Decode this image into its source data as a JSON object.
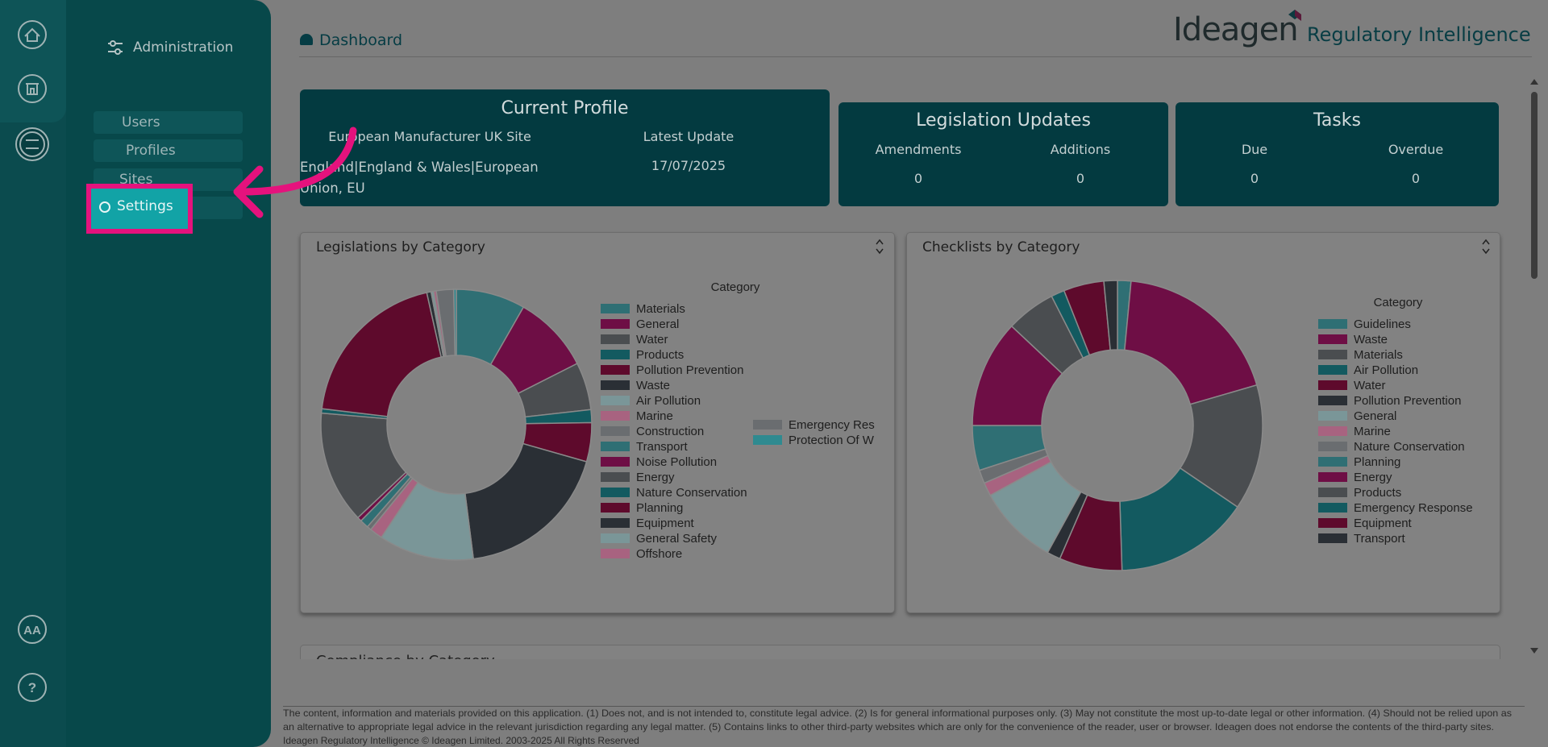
{
  "sidebar": {
    "title": "Administration",
    "menu": [
      "Users",
      "Profiles",
      "Sites",
      "Settings"
    ],
    "user_initials": "AA",
    "help": "?"
  },
  "header": {
    "title": "Dashboard",
    "brand": "Ideagen",
    "product": "Regulatory Intelligence"
  },
  "cards": {
    "current_profile": {
      "title": "Current Profile",
      "name": "European Manufacturer UK Site",
      "jurisdiction": "England|England & Wales|European Union, EU",
      "update_label": "Latest Update",
      "update_value": "17/07/2025"
    },
    "legislation_updates": {
      "title": "Legislation Updates",
      "items": [
        {
          "label": "Amendments",
          "value": 0
        },
        {
          "label": "Additions",
          "value": 0
        }
      ]
    },
    "tasks": {
      "title": "Tasks",
      "items": [
        {
          "label": "Due",
          "value": 0
        },
        {
          "label": "Overdue",
          "value": 0
        }
      ]
    }
  },
  "chart_data": [
    {
      "type": "donut",
      "title": "Legislations by Category",
      "legend_title": "Category",
      "categories": [
        "Materials",
        "General",
        "Water",
        "Products",
        "Pollution Prevention",
        "Waste",
        "Air Pollution",
        "Marine",
        "Construction",
        "Transport",
        "Noise Pollution",
        "Energy",
        "Nature Conservation",
        "Planning",
        "Equipment",
        "General Safety",
        "Offshore",
        "Emergency Res",
        "Protection Of W"
      ],
      "values": [
        8,
        9,
        5.5,
        1.5,
        4.5,
        18,
        11,
        1.5,
        0.5,
        1,
        0.5,
        13,
        0.5,
        19,
        0.5,
        0.3,
        0.3,
        2,
        0.3
      ],
      "colors": [
        "#2f6f74",
        "#6e0e45",
        "#4a4d50",
        "#135a60",
        "#5e0a2c",
        "#2a2f35",
        "#7a9698",
        "#a86380",
        "#6a6d70",
        "#2f6f74",
        "#6e0e45",
        "#4a4d50",
        "#135a60",
        "#5e0a2c",
        "#2a2f35",
        "#7a9698",
        "#a86380",
        "#6a6d70",
        "#2f8a90"
      ]
    },
    {
      "type": "donut",
      "title": "Checklists by Category",
      "legend_title": "Category",
      "categories": [
        "Guidelines",
        "Waste",
        "Materials",
        "Air Pollution",
        "Water",
        "Pollution Prevention",
        "General",
        "Marine",
        "Nature Conservation",
        "Planning",
        "Energy",
        "Products",
        "Emergency Response",
        "Equipment",
        "Transport"
      ],
      "values": [
        1.5,
        19,
        14,
        15,
        7,
        1.5,
        9,
        1.5,
        1.5,
        5,
        12,
        5.5,
        1.5,
        4.5,
        1.5
      ],
      "colors": [
        "#2f6f74",
        "#6e0e45",
        "#4a4d50",
        "#135a60",
        "#5e0a2c",
        "#2a2f35",
        "#7a9698",
        "#a86380",
        "#6a6d70",
        "#2f6f74",
        "#6e0e45",
        "#4a4d50",
        "#135a60",
        "#5e0a2c",
        "#2a2f35"
      ]
    }
  ],
  "compliance": {
    "title": "Compliance by Category"
  },
  "footer": {
    "lines": [
      "The content, information and materials provided on this application. (1) Does not, and is not intended to, constitute legal advice. (2) Is for general informational purposes only. (3) May not constitute the most up-to-date legal or other information. (4) Should not be relied upon as",
      "an alternative to appropriate legal advice in the relevant jurisdiction regarding any legal matter. (5) Contains links to other third-party websites which are only for the convenience of the reader, user or browser. Ideagen does not endorse the contents of the third-party sites.",
      "Ideagen Regulatory Intelligence © Ideagen Limited. 2003-2025 All Rights Reserved"
    ]
  }
}
